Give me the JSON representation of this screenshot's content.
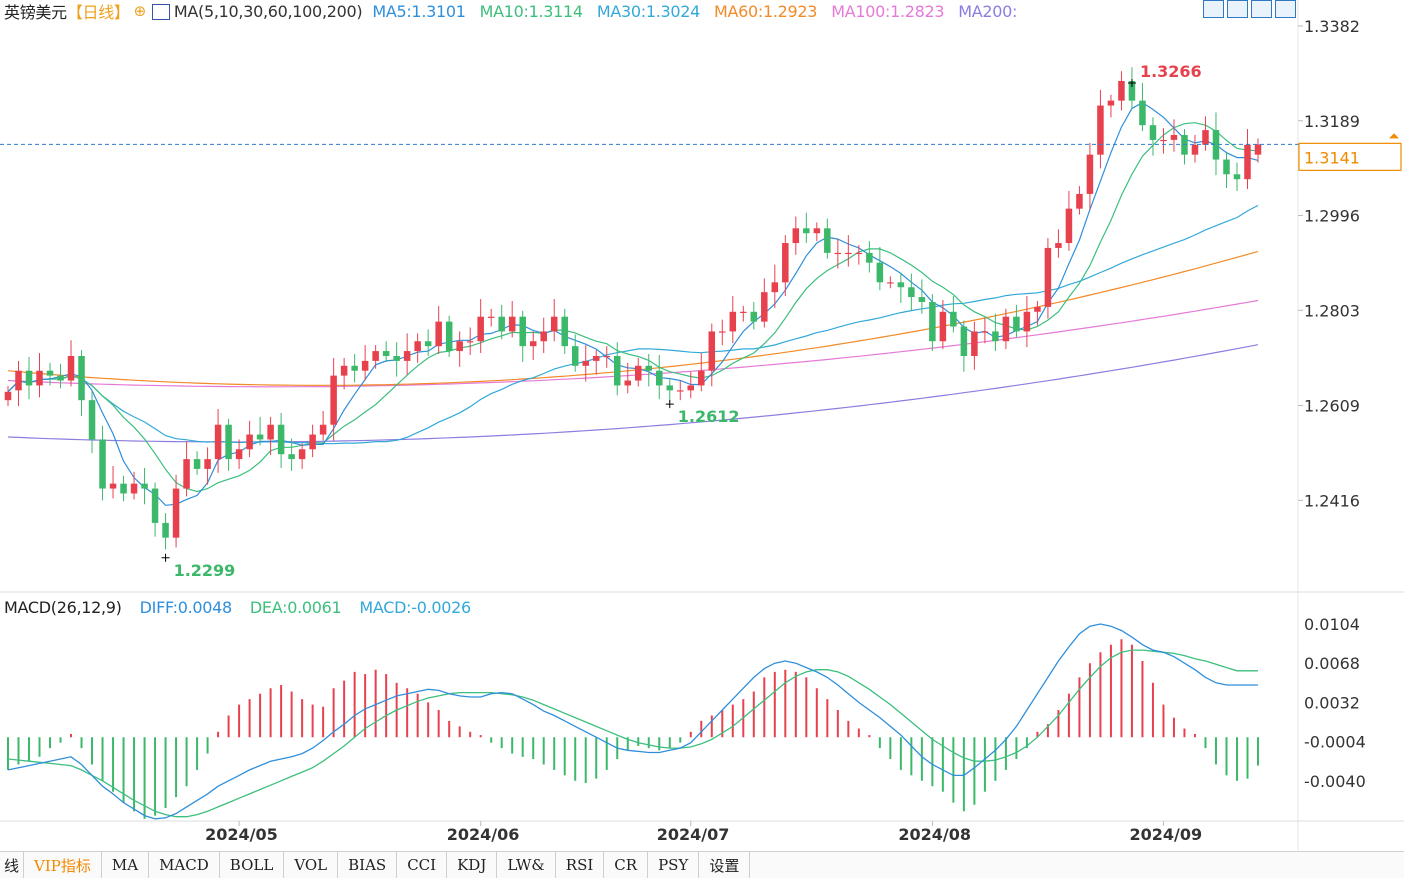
{
  "header": {
    "symbol": "英镑美元",
    "period": "【日线】",
    "zoom_icon": "zoom-in-icon",
    "ma_label": "MA(5,10,30,60,100,200)",
    "ma_values": [
      {
        "label": "MA5:1.3101",
        "color": "#2f8fdc"
      },
      {
        "label": "MA10:1.3114",
        "color": "#3cbf7d"
      },
      {
        "label": "MA30:1.3024",
        "color": "#33a9d9"
      },
      {
        "label": "MA60:1.2923",
        "color": "#f28a28"
      },
      {
        "label": "MA100:1.2823",
        "color": "#e57ad8"
      },
      {
        "label": "MA200:",
        "color": "#8a7fe0"
      }
    ],
    "toolbar_icons": [
      "layout-icon-1",
      "layout-icon-2",
      "layout-icon-3",
      "layout-icon-4"
    ]
  },
  "colors": {
    "up": "#e8414e",
    "down": "#3cb86a",
    "last_price_line": "#2a7fd4",
    "last_price_box": "#f08a00",
    "high_label": "#e8414e",
    "low_label": "#3cb86a",
    "diff": "#2f8fdc",
    "dea": "#3cbf7d"
  },
  "price_axis": {
    "ticks": [
      "1.3382",
      "1.3189",
      "1.2996",
      "1.2803",
      "1.2609",
      "1.2416"
    ]
  },
  "last_price": "1.3141",
  "annotations": {
    "high": "1.3266",
    "low_1": "1.2299",
    "low_2": "1.2612"
  },
  "macd": {
    "label": "MACD(26,12,9)",
    "diff": "DIFF:0.0048",
    "dea": "DEA:0.0061",
    "macd": "MACD:-0.0026",
    "axis_ticks": [
      "0.0104",
      "0.0068",
      "0.0032",
      "-0.0004",
      "-0.0040"
    ]
  },
  "x_axis": {
    "labels": [
      "2024/05",
      "2024/06",
      "2024/07",
      "2024/08",
      "2024/09"
    ]
  },
  "tabs": [
    "线",
    "VIP指标",
    "MA",
    "MACD",
    "BOLL",
    "VOL",
    "BIAS",
    "CCI",
    "KDJ",
    "LW&",
    "RSI",
    "CR",
    "PSY",
    "设置"
  ],
  "chart_data": {
    "type": "candlestick",
    "title": "英镑美元【日线】",
    "y_range": [
      1.2266,
      1.3382
    ],
    "x": [
      "2024-04-01",
      "2024-04-02",
      "2024-04-03",
      "2024-04-04",
      "2024-04-05",
      "2024-04-08",
      "2024-04-09",
      "2024-04-10",
      "2024-04-11",
      "2024-04-12",
      "2024-04-15",
      "2024-04-16",
      "2024-04-17",
      "2024-04-18",
      "2024-04-19",
      "2024-04-22",
      "2024-04-23",
      "2024-04-24",
      "2024-04-25",
      "2024-04-26",
      "2024-04-29",
      "2024-04-30",
      "2024-05-01",
      "2024-05-02",
      "2024-05-03",
      "2024-05-06",
      "2024-05-07",
      "2024-05-08",
      "2024-05-09",
      "2024-05-10",
      "2024-05-13",
      "2024-05-14",
      "2024-05-15",
      "2024-05-16",
      "2024-05-17",
      "2024-05-20",
      "2024-05-21",
      "2024-05-22",
      "2024-05-23",
      "2024-05-24",
      "2024-05-27",
      "2024-05-28",
      "2024-05-29",
      "2024-05-30",
      "2024-05-31",
      "2024-06-03",
      "2024-06-04",
      "2024-06-05",
      "2024-06-06",
      "2024-06-07",
      "2024-06-10",
      "2024-06-11",
      "2024-06-12",
      "2024-06-13",
      "2024-06-14",
      "2024-06-17",
      "2024-06-18",
      "2024-06-19",
      "2024-06-20",
      "2024-06-21",
      "2024-06-24",
      "2024-06-25",
      "2024-06-26",
      "2024-06-27",
      "2024-06-28",
      "2024-07-01",
      "2024-07-02",
      "2024-07-03",
      "2024-07-04",
      "2024-07-05",
      "2024-07-08",
      "2024-07-09",
      "2024-07-10",
      "2024-07-11",
      "2024-07-12",
      "2024-07-15",
      "2024-07-16",
      "2024-07-17",
      "2024-07-18",
      "2024-07-19",
      "2024-07-22",
      "2024-07-23",
      "2024-07-24",
      "2024-07-25",
      "2024-07-26",
      "2024-07-29",
      "2024-07-30",
      "2024-07-31",
      "2024-08-01",
      "2024-08-02",
      "2024-08-05",
      "2024-08-06",
      "2024-08-07",
      "2024-08-08",
      "2024-08-09",
      "2024-08-12",
      "2024-08-13",
      "2024-08-14",
      "2024-08-15",
      "2024-08-16",
      "2024-08-19",
      "2024-08-20",
      "2024-08-21",
      "2024-08-22",
      "2024-08-23",
      "2024-08-26",
      "2024-08-27",
      "2024-08-28",
      "2024-08-29",
      "2024-08-30",
      "2024-09-02",
      "2024-09-03",
      "2024-09-04",
      "2024-09-05",
      "2024-09-06",
      "2024-09-09",
      "2024-09-10",
      "2024-09-11",
      "2024-09-12",
      "2024-09-13"
    ],
    "close": [
      1.2637,
      1.268,
      1.265,
      1.268,
      1.267,
      1.266,
      1.271,
      1.262,
      1.254,
      1.244,
      1.245,
      1.243,
      1.245,
      1.244,
      1.237,
      1.234,
      1.244,
      1.25,
      1.248,
      1.25,
      1.257,
      1.25,
      1.252,
      1.255,
      1.254,
      1.257,
      1.251,
      1.25,
      1.252,
      1.255,
      1.257,
      1.267,
      1.269,
      1.268,
      1.27,
      1.272,
      1.271,
      1.27,
      1.272,
      1.274,
      1.273,
      1.278,
      1.272,
      1.274,
      1.274,
      1.279,
      1.279,
      1.276,
      1.279,
      1.273,
      1.274,
      1.276,
      1.279,
      1.273,
      1.269,
      1.27,
      1.271,
      1.271,
      1.265,
      1.266,
      1.269,
      1.268,
      1.265,
      1.264,
      1.264,
      1.265,
      1.268,
      1.276,
      1.276,
      1.28,
      1.28,
      1.278,
      1.284,
      1.286,
      1.294,
      1.297,
      1.296,
      1.297,
      1.292,
      1.292,
      1.292,
      1.292,
      1.29,
      1.286,
      1.286,
      1.285,
      1.283,
      1.282,
      1.274,
      1.28,
      1.277,
      1.271,
      1.276,
      1.276,
      1.274,
      1.279,
      1.276,
      1.28,
      1.281,
      1.293,
      1.294,
      1.301,
      1.304,
      1.312,
      1.322,
      1.323,
      1.327,
      1.323,
      1.318,
      1.315,
      1.315,
      1.316,
      1.312,
      1.314,
      1.317,
      1.311,
      1.308,
      1.307,
      1.314,
      1.3141
    ],
    "open": [
      1.262,
      1.264,
      1.268,
      1.265,
      1.268,
      1.267,
      1.266,
      1.271,
      1.262,
      1.254,
      1.244,
      1.245,
      1.243,
      1.245,
      1.244,
      1.237,
      1.234,
      1.244,
      1.25,
      1.248,
      1.25,
      1.257,
      1.25,
      1.252,
      1.255,
      1.254,
      1.257,
      1.251,
      1.25,
      1.252,
      1.255,
      1.257,
      1.267,
      1.269,
      1.268,
      1.27,
      1.272,
      1.271,
      1.27,
      1.272,
      1.274,
      1.273,
      1.278,
      1.272,
      1.274,
      1.274,
      1.279,
      1.279,
      1.276,
      1.279,
      1.273,
      1.274,
      1.276,
      1.279,
      1.273,
      1.269,
      1.27,
      1.271,
      1.271,
      1.265,
      1.266,
      1.269,
      1.268,
      1.265,
      1.264,
      1.264,
      1.265,
      1.268,
      1.276,
      1.276,
      1.28,
      1.28,
      1.278,
      1.284,
      1.286,
      1.294,
      1.297,
      1.296,
      1.297,
      1.292,
      1.292,
      1.292,
      1.292,
      1.29,
      1.286,
      1.286,
      1.285,
      1.283,
      1.282,
      1.274,
      1.28,
      1.277,
      1.271,
      1.276,
      1.276,
      1.274,
      1.279,
      1.276,
      1.28,
      1.281,
      1.293,
      1.294,
      1.301,
      1.304,
      1.312,
      1.322,
      1.323,
      1.327,
      1.323,
      1.318,
      1.315,
      1.315,
      1.316,
      1.312,
      1.314,
      1.317,
      1.311,
      1.308,
      1.307,
      1.312
    ],
    "series": [
      {
        "name": "MA5",
        "color": "#2f8fdc",
        "last": 1.3101
      },
      {
        "name": "MA10",
        "color": "#3cbf7d",
        "last": 1.3114
      },
      {
        "name": "MA30",
        "color": "#33a9d9",
        "last": 1.3024
      },
      {
        "name": "MA60",
        "color": "#f28a28",
        "last": 1.2923
      },
      {
        "name": "MA100",
        "color": "#e57ad8",
        "last": 1.2823
      },
      {
        "name": "MA200",
        "color": "#8a7fe0",
        "last": null
      }
    ],
    "macd_range": [
      -0.0076,
      0.0104
    ],
    "macd_hist": [
      -0.003,
      -0.0025,
      -0.0022,
      -0.0018,
      -0.001,
      -0.0005,
      0.0003,
      -0.001,
      -0.0025,
      -0.004,
      -0.005,
      -0.006,
      -0.0068,
      -0.0075,
      -0.0072,
      -0.0065,
      -0.0055,
      -0.0045,
      -0.003,
      -0.0015,
      0.0005,
      0.002,
      0.003,
      0.0035,
      0.004,
      0.0045,
      0.0048,
      0.0042,
      0.0035,
      0.003,
      0.0028,
      0.0045,
      0.0052,
      0.006,
      0.0058,
      0.0062,
      0.0058,
      0.005,
      0.0045,
      0.004,
      0.0032,
      0.0025,
      0.0015,
      0.001,
      0.0005,
      0.0002,
      -0.0005,
      -0.001,
      -0.0015,
      -0.0018,
      -0.002,
      -0.0025,
      -0.003,
      -0.0035,
      -0.004,
      -0.0042,
      -0.0038,
      -0.003,
      -0.002,
      -0.0012,
      -0.0008,
      -0.001,
      -0.0012,
      -0.001,
      -0.0005,
      0.0005,
      0.0015,
      0.002,
      0.0025,
      0.003,
      0.0035,
      0.0042,
      0.0055,
      0.006,
      0.0062,
      0.006,
      0.0055,
      0.0045,
      0.0035,
      0.0025,
      0.0015,
      0.0008,
      0.0002,
      -0.001,
      -0.002,
      -0.003,
      -0.0035,
      -0.004,
      -0.0045,
      -0.005,
      -0.006,
      -0.0068,
      -0.0062,
      -0.005,
      -0.004,
      -0.003,
      -0.002,
      -0.001,
      0.0005,
      0.0012,
      0.0025,
      0.004,
      0.0055,
      0.0068,
      0.0078,
      0.0085,
      0.009,
      0.0085,
      0.007,
      0.005,
      0.003,
      0.0018,
      0.0008,
      0.0003,
      -0.001,
      -0.0025,
      -0.0035,
      -0.004,
      -0.0038,
      -0.0026
    ],
    "diff_line": [
      -0.003,
      -0.0028,
      -0.0026,
      -0.0024,
      -0.0022,
      -0.002,
      -0.0018,
      -0.0025,
      -0.0035,
      -0.0045,
      -0.0052,
      -0.006,
      -0.0066,
      -0.0072,
      -0.0075,
      -0.0074,
      -0.007,
      -0.0064,
      -0.0058,
      -0.0052,
      -0.0045,
      -0.004,
      -0.0035,
      -0.003,
      -0.0026,
      -0.0022,
      -0.002,
      -0.0018,
      -0.0015,
      -0.001,
      -0.0003,
      0.0005,
      0.0012,
      0.002,
      0.0026,
      0.003,
      0.0034,
      0.0038,
      0.004,
      0.0042,
      0.0044,
      0.0043,
      0.004,
      0.0038,
      0.0037,
      0.0037,
      0.004,
      0.0041,
      0.004,
      0.0035,
      0.003,
      0.0024,
      0.002,
      0.0015,
      0.001,
      0.0005,
      0.0,
      -0.0005,
      -0.001,
      -0.0012,
      -0.0013,
      -0.0014,
      -0.0014,
      -0.0012,
      -0.001,
      -0.0005,
      0.0005,
      0.0015,
      0.0025,
      0.0035,
      0.0045,
      0.0055,
      0.0063,
      0.0068,
      0.007,
      0.0068,
      0.0064,
      0.006,
      0.0055,
      0.0048,
      0.004,
      0.0032,
      0.0025,
      0.0018,
      0.001,
      0.0002,
      -0.0008,
      -0.0018,
      -0.0025,
      -0.003,
      -0.0035,
      -0.0035,
      -0.0028,
      -0.002,
      -0.0012,
      -0.0002,
      0.001,
      0.0025,
      0.004,
      0.0055,
      0.007,
      0.0083,
      0.0095,
      0.0102,
      0.0104,
      0.0102,
      0.0098,
      0.0092,
      0.0085,
      0.008,
      0.0078,
      0.0074,
      0.0068,
      0.0062,
      0.0055,
      0.005,
      0.0048,
      0.0048,
      0.0048,
      0.0048
    ],
    "dea_line": [
      -0.002,
      -0.0021,
      -0.0022,
      -0.0023,
      -0.0024,
      -0.0025,
      -0.0026,
      -0.003,
      -0.0035,
      -0.004,
      -0.0046,
      -0.0052,
      -0.0058,
      -0.0063,
      -0.0068,
      -0.0071,
      -0.0073,
      -0.0073,
      -0.0071,
      -0.0068,
      -0.0064,
      -0.006,
      -0.0056,
      -0.0052,
      -0.0048,
      -0.0044,
      -0.004,
      -0.0036,
      -0.0032,
      -0.0028,
      -0.0022,
      -0.0015,
      -0.0008,
      0.0,
      0.0008,
      0.0014,
      0.002,
      0.0025,
      0.0029,
      0.0033,
      0.0036,
      0.0038,
      0.004,
      0.0041,
      0.0041,
      0.0041,
      0.0041,
      0.004,
      0.0039,
      0.0037,
      0.0034,
      0.003,
      0.0026,
      0.0022,
      0.0018,
      0.0014,
      0.001,
      0.0006,
      0.0002,
      -0.0002,
      -0.0005,
      -0.0007,
      -0.0009,
      -0.001,
      -0.001,
      -0.0009,
      -0.0006,
      -0.0002,
      0.0004,
      0.001,
      0.0018,
      0.0026,
      0.0034,
      0.0042,
      0.005,
      0.0056,
      0.006,
      0.0062,
      0.0062,
      0.006,
      0.0056,
      0.005,
      0.0044,
      0.0037,
      0.003,
      0.0022,
      0.0014,
      0.0006,
      -0.0002,
      -0.0008,
      -0.0014,
      -0.0019,
      -0.0022,
      -0.0022,
      -0.0021,
      -0.0018,
      -0.0014,
      -0.0008,
      0.0,
      0.001,
      0.002,
      0.0032,
      0.0044,
      0.0055,
      0.0065,
      0.0073,
      0.0078,
      0.008,
      0.008,
      0.0079,
      0.0078,
      0.0077,
      0.0075,
      0.0072,
      0.007,
      0.0067,
      0.0064,
      0.0061,
      0.0061,
      0.0061
    ]
  }
}
